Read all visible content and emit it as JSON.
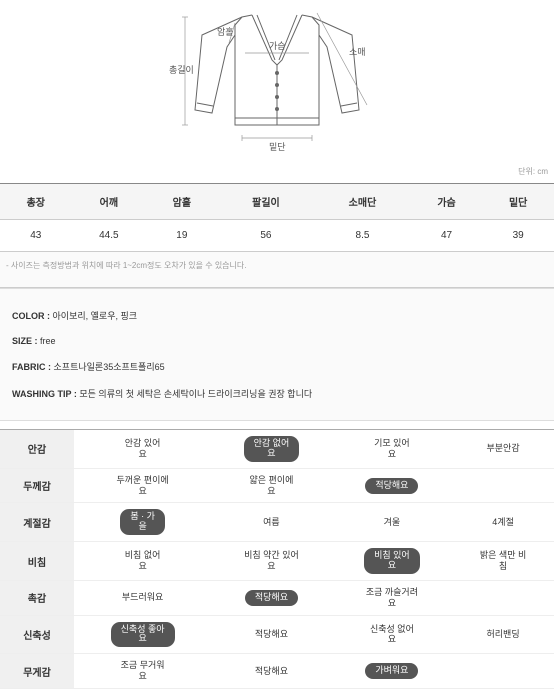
{
  "diagram": {
    "labels": {
      "total_length": "총길이",
      "armhole": "암홀",
      "chest": "가슴",
      "sleeve": "소매",
      "hem": "밑단"
    }
  },
  "size_table": {
    "headers": [
      "총장",
      "어깨",
      "암홀",
      "팔길이",
      "소매단",
      "가슴",
      "밑단"
    ],
    "row": [
      "43",
      "44.5",
      "19",
      "56",
      "8.5",
      "47",
      "39"
    ]
  },
  "unit_text": "단위: cm",
  "size_note": "- 사이즈는 측정방법과 위치에 따라 1~2cm정도 오차가 있을 수 있습니다.",
  "info": {
    "color": {
      "label": "COLOR :",
      "value": "아이보리, 옐로우, 핑크"
    },
    "size": {
      "label": "SIZE :",
      "value": "free"
    },
    "fabric": {
      "label": "FABRIC :",
      "value": "소프트나일론35소프트폴리65"
    },
    "washing": {
      "label": "WASHING TIP :",
      "value": "모든 의류의 첫 세탁은 손세탁이나 드라이크리닝을 권장 합니다"
    }
  },
  "detail_table": {
    "rows": [
      {
        "label": "안감",
        "options": [
          "안감 있어\n요",
          "안감 없어\n요",
          "기모 있어\n요",
          "부분안감"
        ],
        "selected": 1
      },
      {
        "label": "두께감",
        "options": [
          "두꺼운 편이에\n요",
          "얇은 편이에\n요",
          "적당해요"
        ],
        "selected": 2
      },
      {
        "label": "계절감",
        "options": [
          "봄 · 가\n을",
          "여름",
          "겨울",
          "4계절"
        ],
        "selected": 0
      },
      {
        "label": "비침",
        "options": [
          "비침 없어\n요",
          "비침 약간 있어\n요",
          "비침 있어\n요",
          "밝은 색만 비\n침"
        ],
        "selected": 2
      },
      {
        "label": "촉감",
        "options": [
          "부드러워요",
          "적당해요",
          "조금 까슬거려\n요"
        ],
        "selected": 1
      },
      {
        "label": "신축성",
        "options": [
          "신축성 좋아\n요",
          "적당해요",
          "신축성 없어\n요",
          "허리밴딩"
        ],
        "selected": 0
      },
      {
        "label": "무게감",
        "options": [
          "조금 무거워\n요",
          "적당해요",
          "가벼워요"
        ],
        "selected": 2
      }
    ]
  },
  "colors": {
    "pill_bg": "#555555",
    "th_bg": "#f5f5f5",
    "info_bg": "#fafafa",
    "line": "#666"
  }
}
